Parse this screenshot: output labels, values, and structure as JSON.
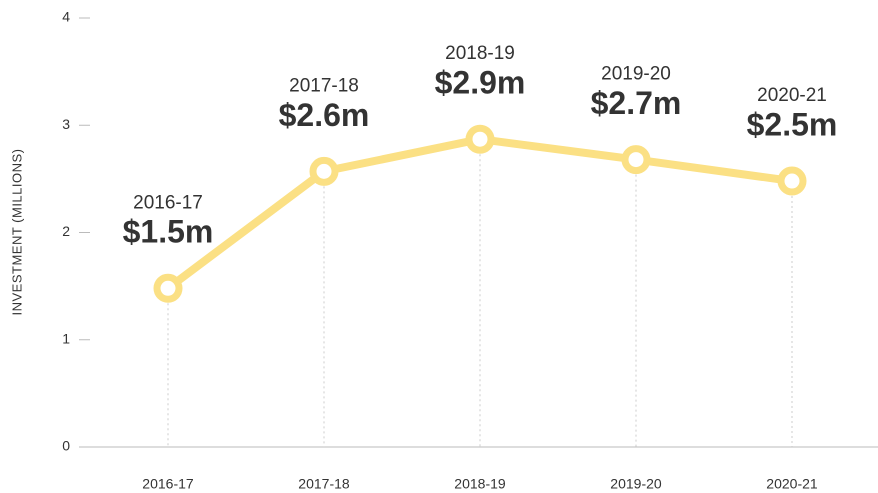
{
  "chart_data": {
    "type": "line",
    "y_label": "INVESTMENT (MILLIONS)",
    "categories": [
      "2016-17",
      "2017-18",
      "2018-19",
      "2019-20",
      "2020-21"
    ],
    "values": [
      1.48,
      2.57,
      2.87,
      2.68,
      2.48
    ],
    "value_labels": [
      "$1.5m",
      "$2.6m",
      "$2.9m",
      "$2.7m",
      "$2.5m"
    ],
    "color": "#fbe084",
    "ylim": [
      0,
      4
    ],
    "yticks": [
      0,
      1,
      2,
      3,
      4
    ]
  }
}
